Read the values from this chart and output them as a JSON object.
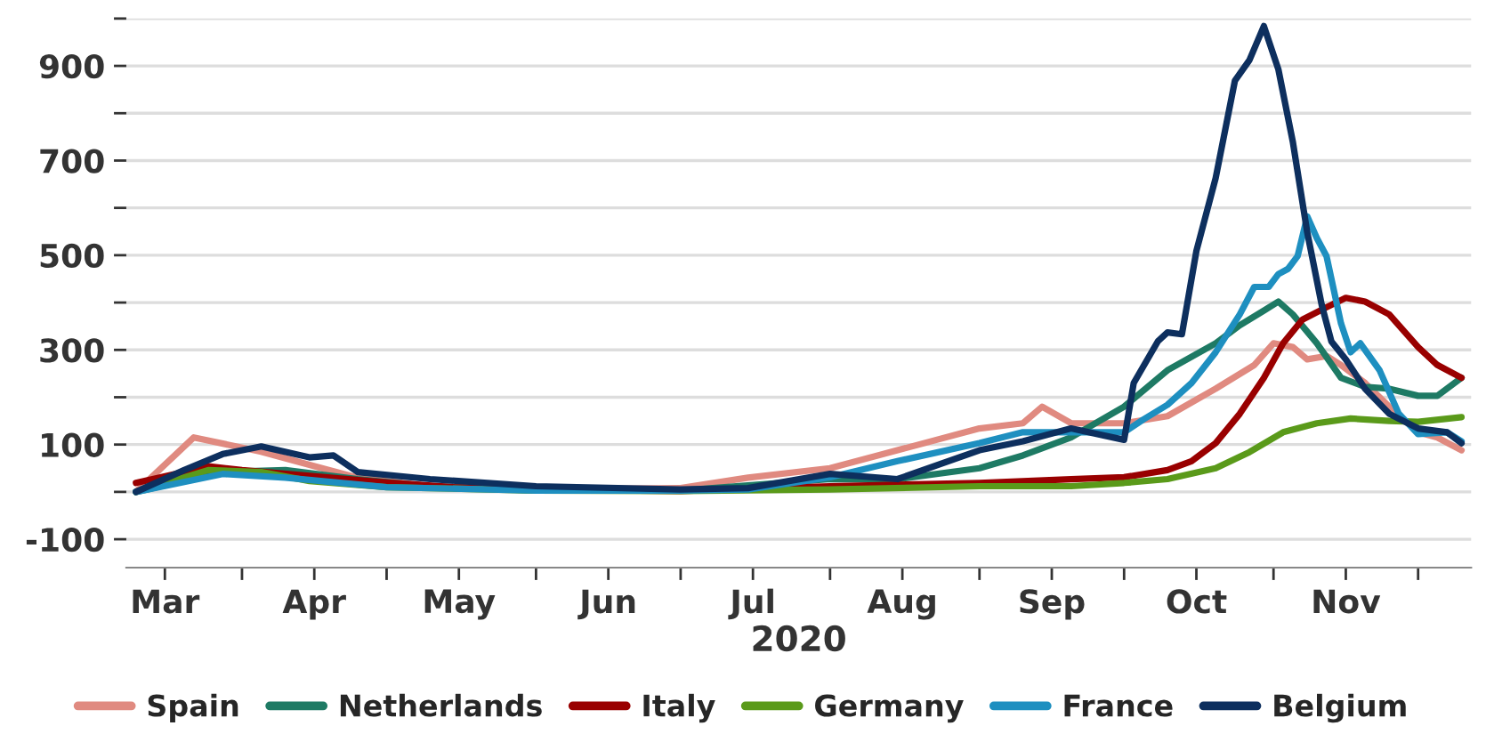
{
  "chart_data": {
    "type": "line",
    "xlabel": "2020",
    "xlim": [
      "2020-03-08",
      "2020-12-12"
    ],
    "xticks": [
      {
        "value": "2020-03-16",
        "label": "Mar"
      },
      {
        "value": "2020-04-01",
        "label": null
      },
      {
        "value": "2020-04-16",
        "label": "Apr"
      },
      {
        "value": "2020-05-01",
        "label": null
      },
      {
        "value": "2020-05-16",
        "label": "May"
      },
      {
        "value": "2020-06-01",
        "label": null
      },
      {
        "value": "2020-06-16",
        "label": "Jun"
      },
      {
        "value": "2020-07-01",
        "label": null
      },
      {
        "value": "2020-07-16",
        "label": "Jul"
      },
      {
        "value": "2020-08-01",
        "label": null
      },
      {
        "value": "2020-08-16",
        "label": "Aug"
      },
      {
        "value": "2020-09-01",
        "label": null
      },
      {
        "value": "2020-09-16",
        "label": "Sep"
      },
      {
        "value": "2020-10-01",
        "label": null
      },
      {
        "value": "2020-10-16",
        "label": "Oct"
      },
      {
        "value": "2020-11-01",
        "label": null
      },
      {
        "value": "2020-11-16",
        "label": "Nov"
      },
      {
        "value": "2020-12-01",
        "label": null
      }
    ],
    "ylim": [
      -160,
      1000
    ],
    "yticks": [
      {
        "value": -100,
        "label": "-100"
      },
      {
        "value": 0,
        "label": null
      },
      {
        "value": 100,
        "label": "100"
      },
      {
        "value": 200,
        "label": null
      },
      {
        "value": 300,
        "label": "300"
      },
      {
        "value": 400,
        "label": null
      },
      {
        "value": 500,
        "label": "500"
      },
      {
        "value": 600,
        "label": null
      },
      {
        "value": 700,
        "label": "700"
      },
      {
        "value": 800,
        "label": null
      },
      {
        "value": 900,
        "label": "900"
      },
      {
        "value": 1000,
        "label": null
      }
    ],
    "grid": "y",
    "legend": "bottom",
    "line_style": "solid",
    "series": [
      {
        "name": "Spain",
        "color": "#e08a80",
        "x": [
          "2020-03-10",
          "2020-03-22",
          "2020-04-05",
          "2020-04-15",
          "2020-04-25",
          "2020-05-10",
          "2020-06-01",
          "2020-07-01",
          "2020-07-15",
          "2020-08-01",
          "2020-08-15",
          "2020-09-01",
          "2020-09-10",
          "2020-09-14",
          "2020-09-20",
          "2020-10-01",
          "2020-10-10",
          "2020-10-20",
          "2020-10-28",
          "2020-11-01",
          "2020-11-05",
          "2020-11-08",
          "2020-11-12",
          "2020-11-15",
          "2020-11-20",
          "2020-11-25",
          "2020-12-01",
          "2020-12-05",
          "2020-12-10"
        ],
        "values": [
          0,
          115,
          85,
          57,
          30,
          12,
          5,
          8,
          30,
          50,
          88,
          134,
          145,
          180,
          145,
          145,
          160,
          218,
          268,
          314,
          306,
          280,
          287,
          268,
          230,
          180,
          126,
          115,
          88
        ]
      },
      {
        "name": "Netherlands",
        "color": "#1e7a64",
        "x": [
          "2020-03-10",
          "2020-03-28",
          "2020-04-10",
          "2020-04-25",
          "2020-05-10",
          "2020-06-01",
          "2020-07-01",
          "2020-08-01",
          "2020-08-15",
          "2020-09-01",
          "2020-09-10",
          "2020-09-20",
          "2020-10-01",
          "2020-10-10",
          "2020-10-20",
          "2020-10-25",
          "2020-10-30",
          "2020-11-02",
          "2020-11-05",
          "2020-11-10",
          "2020-11-15",
          "2020-11-20",
          "2020-11-25",
          "2020-12-01",
          "2020-12-05",
          "2020-12-10"
        ],
        "values": [
          0,
          42,
          46,
          27,
          12,
          3,
          3,
          27,
          27,
          50,
          77,
          115,
          180,
          257,
          314,
          352,
          383,
          402,
          375,
          314,
          241,
          222,
          218,
          203,
          203,
          241
        ]
      },
      {
        "name": "Italy",
        "color": "#990000",
        "x": [
          "2020-03-10",
          "2020-03-20",
          "2020-03-25",
          "2020-04-01",
          "2020-04-15",
          "2020-05-01",
          "2020-05-15",
          "2020-06-01",
          "2020-07-01",
          "2020-08-01",
          "2020-09-01",
          "2020-09-20",
          "2020-10-01",
          "2020-10-10",
          "2020-10-15",
          "2020-10-20",
          "2020-10-25",
          "2020-10-30",
          "2020-11-03",
          "2020-11-07",
          "2020-11-12",
          "2020-11-16",
          "2020-11-20",
          "2020-11-25",
          "2020-12-01",
          "2020-12-05",
          "2020-12-10"
        ],
        "values": [
          19,
          42,
          54,
          46,
          34,
          20,
          10,
          5,
          2,
          12,
          19,
          27,
          31,
          46,
          65,
          103,
          165,
          241,
          314,
          364,
          390,
          410,
          402,
          375,
          306,
          268,
          241
        ]
      },
      {
        "name": "Germany",
        "color": "#5a9a1a",
        "x": [
          "2020-03-10",
          "2020-03-25",
          "2020-04-05",
          "2020-04-15",
          "2020-05-01",
          "2020-06-01",
          "2020-07-01",
          "2020-08-01",
          "2020-09-01",
          "2020-09-20",
          "2020-10-01",
          "2020-10-10",
          "2020-10-20",
          "2020-10-27",
          "2020-11-03",
          "2020-11-10",
          "2020-11-17",
          "2020-11-25",
          "2020-12-01",
          "2020-12-10"
        ],
        "values": [
          0,
          46,
          42,
          23,
          10,
          3,
          2,
          5,
          12,
          12,
          19,
          27,
          50,
          84,
          126,
          145,
          155,
          150,
          148,
          158
        ]
      },
      {
        "name": "France",
        "color": "#1e8fc0",
        "x": [
          "2020-03-10",
          "2020-03-28",
          "2020-04-10",
          "2020-05-01",
          "2020-06-01",
          "2020-07-01",
          "2020-07-15",
          "2020-08-01",
          "2020-08-15",
          "2020-09-01",
          "2020-09-10",
          "2020-09-20",
          "2020-10-01",
          "2020-10-05",
          "2020-10-10",
          "2020-10-15",
          "2020-10-20",
          "2020-10-25",
          "2020-10-28",
          "2020-10-31",
          "2020-11-02",
          "2020-11-04",
          "2020-11-06",
          "2020-11-08",
          "2020-11-10",
          "2020-11-12",
          "2020-11-15",
          "2020-11-17",
          "2020-11-19",
          "2020-11-23",
          "2020-11-27",
          "2020-12-01",
          "2020-12-07",
          "2020-12-10"
        ],
        "values": [
          0,
          38,
          30,
          10,
          3,
          3,
          5,
          31,
          65,
          103,
          126,
          126,
          126,
          153,
          184,
          230,
          295,
          375,
          433,
          433,
          460,
          471,
          498,
          582,
          536,
          498,
          356,
          295,
          314,
          257,
          165,
          122,
          126,
          107
        ]
      },
      {
        "name": "Belgium",
        "color": "#0d2f5e",
        "x": [
          "2020-03-10",
          "2020-03-20",
          "2020-03-28",
          "2020-04-05",
          "2020-04-15",
          "2020-04-20",
          "2020-04-25",
          "2020-05-10",
          "2020-06-01",
          "2020-07-01",
          "2020-07-15",
          "2020-08-01",
          "2020-08-15",
          "2020-09-01",
          "2020-09-10",
          "2020-09-20",
          "2020-10-01",
          "2020-10-03",
          "2020-10-08",
          "2020-10-10",
          "2020-10-13",
          "2020-10-16",
          "2020-10-20",
          "2020-10-24",
          "2020-10-27",
          "2020-10-30",
          "2020-11-02",
          "2020-11-05",
          "2020-11-08",
          "2020-11-11",
          "2020-11-13",
          "2020-11-16",
          "2020-11-20",
          "2020-11-25",
          "2020-12-01",
          "2020-12-07",
          "2020-12-10"
        ],
        "values": [
          0,
          46,
          80,
          96,
          73,
          77,
          42,
          27,
          12,
          5,
          8,
          38,
          27,
          88,
          107,
          134,
          110,
          230,
          318,
          337,
          333,
          509,
          663,
          869,
          912,
          984,
          893,
          740,
          548,
          395,
          318,
          280,
          218,
          165,
          134,
          126,
          103
        ]
      }
    ]
  }
}
